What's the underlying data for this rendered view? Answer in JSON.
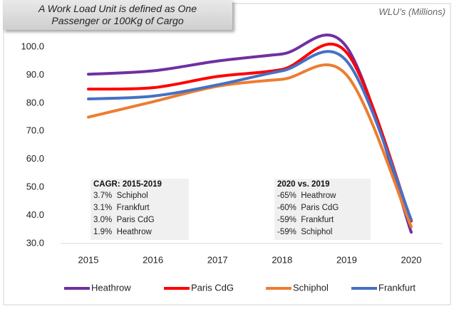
{
  "chart_data": {
    "type": "line",
    "title": "A Work Load Unit is defined as One Passenger or 100Kg of Cargo",
    "y_axis_label": "WLU’s (Millions)",
    "categories": [
      "2015",
      "2016",
      "2017",
      "2018",
      "2019",
      "2020"
    ],
    "series": [
      {
        "name": "Heathrow",
        "color": "#7030a0",
        "values": [
          90.3,
          91.5,
          95,
          97.5,
          100,
          34
        ]
      },
      {
        "name": "Paris CdG",
        "color": "#ff0000",
        "values": [
          85,
          85.5,
          89.5,
          92,
          98,
          38
        ]
      },
      {
        "name": "Schiphol",
        "color": "#ed7d31",
        "values": [
          75,
          80.5,
          86,
          88.5,
          90,
          36
        ]
      },
      {
        "name": "Frankfurt",
        "color": "#4472c4",
        "values": [
          81.5,
          82.5,
          86.5,
          91.5,
          95,
          38.5
        ]
      }
    ],
    "ylim": [
      30,
      100
    ],
    "yticks": [
      {
        "value": 30,
        "label": "30.0"
      },
      {
        "value": 40,
        "label": "40.0"
      },
      {
        "value": 50,
        "label": "50.0"
      },
      {
        "value": 60,
        "label": "60.0"
      },
      {
        "value": 70,
        "label": "70.0"
      },
      {
        "value": 80,
        "label": "80.0"
      },
      {
        "value": 90,
        "label": "90.0"
      },
      {
        "value": 100,
        "label": "100.0"
      }
    ],
    "grid": false,
    "legend": "bottom",
    "annotations": [
      {
        "title": "CAGR: 2015-2019",
        "lines": [
          "3.7%  Schiphol",
          "3.1%  Frankfurt",
          "3.0%  Paris CdG",
          "1.9%  Heathrow"
        ]
      },
      {
        "title": "2020 vs. 2019",
        "lines": [
          "-65%  Heathrow",
          "-60%  Paris CdG",
          "-59%  Frankfurt",
          "-59%  Schiphol"
        ]
      }
    ]
  }
}
